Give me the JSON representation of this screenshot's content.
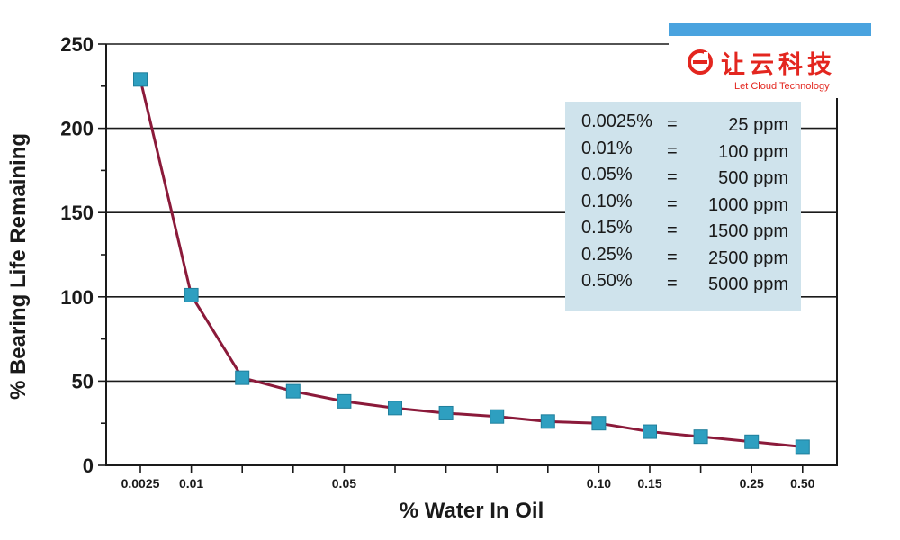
{
  "chart_data": {
    "type": "line",
    "xlabel": "% Water In Oil",
    "ylabel": "% Bearing Life Remaining",
    "ylim": [
      0,
      250
    ],
    "y_ticks": [
      0,
      50,
      100,
      150,
      200,
      250
    ],
    "x_tick_labels": [
      "0.0025",
      "0.01",
      "",
      "",
      "0.05",
      "",
      "",
      "",
      "",
      "0.10",
      "0.15",
      "",
      "0.25",
      "0.50"
    ],
    "grid": true,
    "series": [
      {
        "values": [
          229,
          101,
          52,
          44,
          38,
          34,
          31,
          29,
          26,
          25,
          20,
          17,
          14,
          11
        ]
      }
    ],
    "colors": {
      "line": "#8b1a3a",
      "marker": "#2e9fc0",
      "marker_stroke": "#1f7f9c"
    }
  },
  "conversion_table": [
    {
      "pct": "0.0025%",
      "eq": "=",
      "ppm": "25 ppm"
    },
    {
      "pct": "0.01%",
      "eq": "=",
      "ppm": "100 ppm"
    },
    {
      "pct": "0.05%",
      "eq": "=",
      "ppm": "500 ppm"
    },
    {
      "pct": "0.10%",
      "eq": "=",
      "ppm": "1000 ppm"
    },
    {
      "pct": "0.15%",
      "eq": "=",
      "ppm": "1500 ppm"
    },
    {
      "pct": "0.25%",
      "eq": "=",
      "ppm": "2500 ppm"
    },
    {
      "pct": "0.50%",
      "eq": "=",
      "ppm": "5000 ppm"
    }
  ],
  "logo": {
    "cn": "让云科技",
    "en": "Let Cloud Technology",
    "icon": "let-cloud-logo-icon",
    "color": "#e3261f",
    "bar_color": "#4aa3df"
  }
}
